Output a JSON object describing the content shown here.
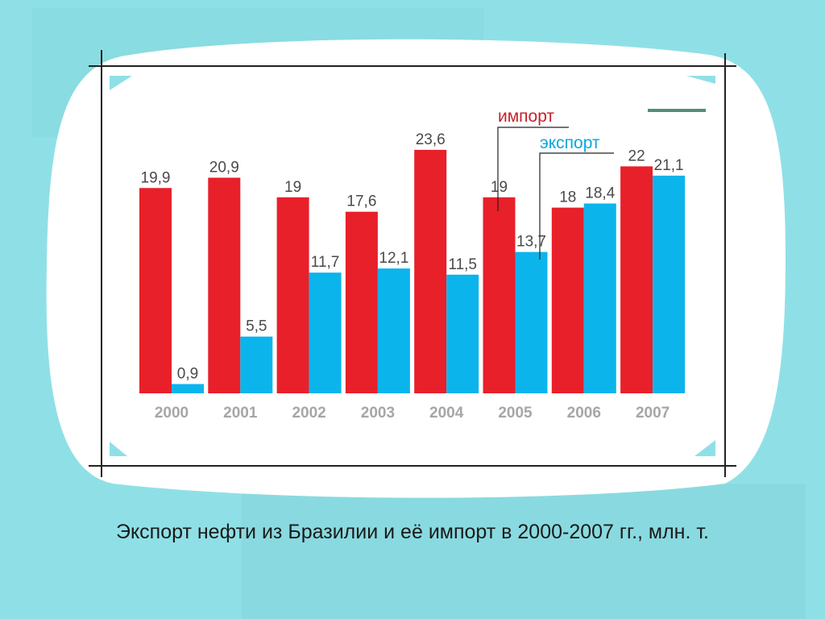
{
  "caption": "Экспорт нефти из Бразилии и её импорт в 2000-2007 гг., млн. т.",
  "colors": {
    "background": "#8fe0e6",
    "panel": "#ffffff",
    "import": "#e8202a",
    "export": "#0cb4ec",
    "legend_import_text": "#c8202a",
    "legend_export_text": "#0aa7de",
    "accent_line": "#4f8f78"
  },
  "chart_data": {
    "type": "bar",
    "title": "",
    "xlabel": "",
    "ylabel": "",
    "categories": [
      "2000",
      "2001",
      "2002",
      "2003",
      "2004",
      "2005",
      "2006",
      "2007"
    ],
    "series": [
      {
        "name": "импорт",
        "values": [
          19.9,
          20.9,
          19,
          17.6,
          23.6,
          19,
          18,
          22
        ],
        "labels": [
          "19,9",
          "20,9",
          "19",
          "17,6",
          "23,6",
          "19",
          "18",
          "22"
        ]
      },
      {
        "name": "экспорт",
        "values": [
          0.9,
          5.5,
          11.7,
          12.1,
          11.5,
          13.7,
          18.4,
          21.1
        ],
        "labels": [
          "0,9",
          "5,5",
          "11,7",
          "12,1",
          "11,5",
          "13,7",
          "18,4",
          "21,1"
        ]
      }
    ],
    "ylim": [
      0,
      25
    ],
    "grid": false,
    "legend_position": "top-right"
  }
}
